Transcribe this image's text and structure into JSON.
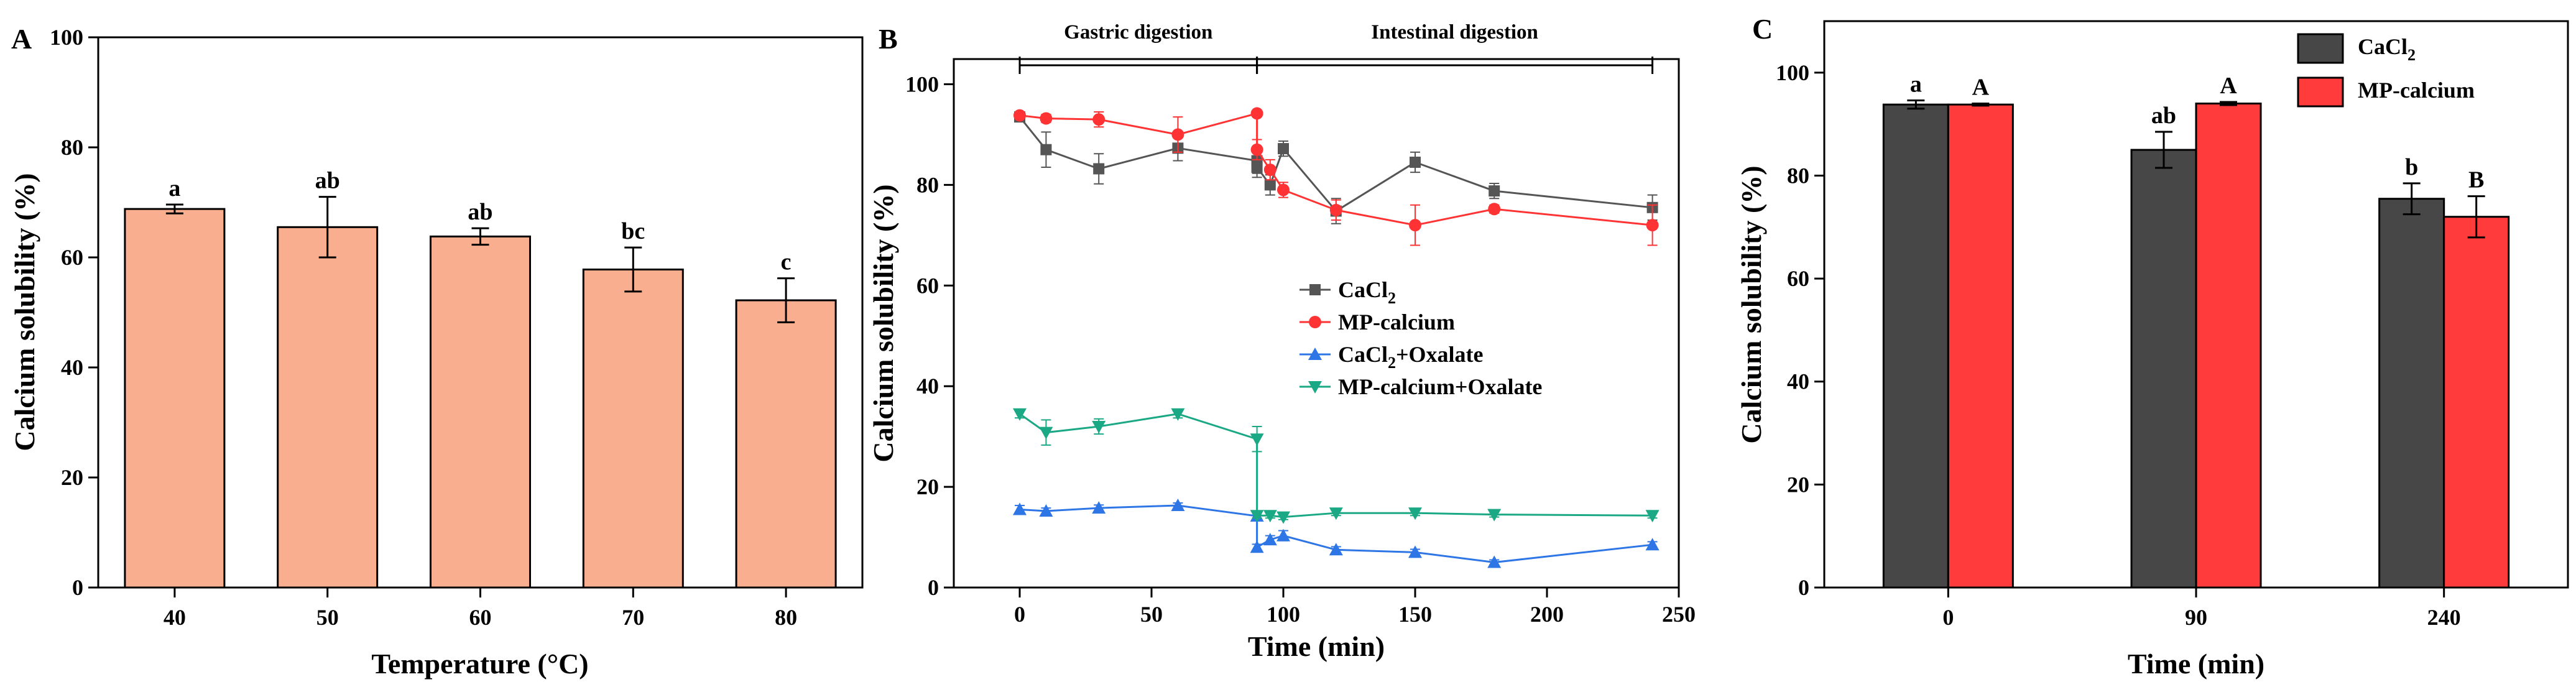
{
  "chart_data": [
    {
      "panel": "A",
      "type": "bar",
      "xlabel": "Temperature (°C)",
      "ylabel": "Calcium solubility (%)",
      "ylim": [
        0,
        100
      ],
      "yticks": [
        0,
        20,
        40,
        60,
        80,
        100
      ],
      "categories": [
        "40",
        "50",
        "60",
        "70",
        "80"
      ],
      "values": [
        68.8,
        65.5,
        63.8,
        57.8,
        52.2
      ],
      "errors": [
        0.8,
        5.5,
        1.5,
        4.0,
        4.0
      ],
      "letters": [
        "a",
        "ab",
        "ab",
        "bc",
        "c"
      ],
      "colors": {
        "bar": "#f9ae8f"
      }
    },
    {
      "panel": "B",
      "type": "line",
      "xlabel": "Time (min)",
      "ylabel": "Calcium solubility (%)",
      "xlim": [
        -25,
        250
      ],
      "ylim": [
        0,
        105
      ],
      "xticks": [
        0,
        50,
        100,
        150,
        200,
        250
      ],
      "yticks": [
        0,
        20,
        40,
        60,
        80,
        100
      ],
      "phases": [
        {
          "label": "Gastric digestion",
          "start": 0,
          "end": 90
        },
        {
          "label": "Intestinal digestion",
          "start": 90,
          "end": 240
        }
      ],
      "legend_position": "center-right",
      "series": [
        {
          "name": "CaCl2",
          "name_main": "CaCl",
          "name_sub": "2",
          "name_tail": "",
          "marker": "square",
          "color": "#555555",
          "x": [
            0,
            10,
            30,
            60,
            90,
            90,
            95,
            100,
            120,
            150,
            180,
            240
          ],
          "y": [
            93.5,
            87.0,
            83.2,
            87.3,
            84.8,
            83.5,
            80.0,
            87.2,
            74.8,
            84.5,
            78.8,
            75.5
          ],
          "errors": [
            0.8,
            3.5,
            3.0,
            2.5,
            2.5,
            2.0,
            2.0,
            1.5,
            2.5,
            2.0,
            1.5,
            2.5
          ]
        },
        {
          "name": "MP-calcium",
          "name_main": "MP-calcium",
          "name_sub": "",
          "name_tail": "",
          "marker": "circle",
          "color": "#ff3333",
          "x": [
            0,
            10,
            30,
            60,
            90,
            90,
            95,
            100,
            120,
            150,
            180,
            240
          ],
          "y": [
            93.8,
            93.2,
            93.0,
            90.0,
            94.2,
            87.0,
            83.0,
            79.0,
            75.0,
            72.0,
            75.2,
            72.0
          ],
          "errors": [
            0.5,
            0.8,
            1.5,
            3.5,
            0.5,
            2.0,
            2.0,
            1.5,
            2.0,
            4.0,
            0.8,
            4.0
          ]
        },
        {
          "name": "CaCl2+Oxalate",
          "name_main": "CaCl",
          "name_sub": "2",
          "name_tail": "+Oxalate",
          "marker": "triangle-up",
          "color": "#2e75e6",
          "x": [
            0,
            10,
            30,
            60,
            90,
            90,
            95,
            100,
            120,
            150,
            180,
            240
          ],
          "y": [
            15.5,
            15.2,
            15.8,
            16.3,
            14.2,
            8.0,
            9.5,
            10.3,
            7.5,
            7.0,
            5.0,
            8.5
          ],
          "errors": [
            0.8,
            0.6,
            0.6,
            0.5,
            0.8,
            0.6,
            0.8,
            1.0,
            0.6,
            0.6,
            0.5,
            0.6
          ]
        },
        {
          "name": "MP-calcium+Oxalate",
          "name_main": "MP-calcium+Oxalate",
          "name_sub": "",
          "name_tail": "",
          "marker": "triangle-down",
          "color": "#1aa885",
          "x": [
            0,
            10,
            30,
            60,
            90,
            90,
            95,
            100,
            120,
            150,
            180,
            240
          ],
          "y": [
            34.5,
            30.8,
            32.0,
            34.5,
            29.5,
            14.3,
            14.3,
            14.0,
            14.8,
            14.8,
            14.5,
            14.3
          ],
          "errors": [
            0.8,
            2.5,
            1.5,
            0.8,
            2.5,
            0.5,
            0.5,
            0.5,
            0.5,
            0.5,
            0.5,
            0.5
          ]
        }
      ]
    },
    {
      "panel": "C",
      "type": "bar",
      "xlabel": "Time (min)",
      "ylabel": "Calcium solubility (%)",
      "ylim": [
        0,
        110
      ],
      "yticks": [
        0,
        20,
        40,
        60,
        80,
        100
      ],
      "categories": [
        "0",
        "90",
        "240"
      ],
      "legend_position": "top-right",
      "series": [
        {
          "name": "CaCl2",
          "name_main": "CaCl",
          "name_sub": "2",
          "name_tail": "",
          "color": "#474747",
          "values": [
            93.8,
            85.0,
            75.5
          ],
          "errors": [
            0.8,
            3.5,
            3.0
          ],
          "letters": [
            "a",
            "ab",
            "b"
          ]
        },
        {
          "name": "MP-calcium",
          "name_main": "MP-calcium",
          "name_sub": "",
          "name_tail": "",
          "color": "#ff3b3b",
          "values": [
            93.8,
            94.0,
            72.0
          ],
          "errors": [
            0.2,
            0.3,
            4.0
          ],
          "letters": [
            "A",
            "A",
            "B"
          ]
        }
      ]
    }
  ]
}
